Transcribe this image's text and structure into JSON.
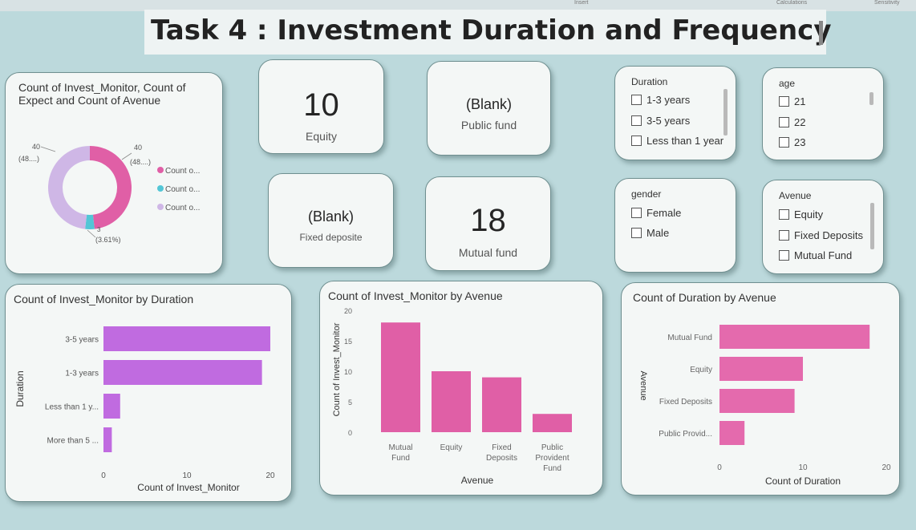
{
  "ribbon": {
    "insert": "Insert",
    "calculations": "Calculations",
    "sensitivity": "Sensitivity"
  },
  "title": "Task 4 :  Investment Duration and Frequency",
  "kpis": {
    "equity": {
      "value": "10",
      "label": "Equity"
    },
    "public_fund": {
      "value": "(Blank)",
      "label": "Public fund"
    },
    "fixed_deposite": {
      "value": "(Blank)",
      "label": "Fixed deposite"
    },
    "mutual_fund": {
      "value": "18",
      "label": "Mutual fund"
    }
  },
  "slicers": {
    "duration": {
      "title": "Duration",
      "items": [
        "1-3 years",
        "3-5 years",
        "Less than 1 year"
      ]
    },
    "age": {
      "title": "age",
      "items": [
        "21",
        "22",
        "23"
      ]
    },
    "gender": {
      "title": "gender",
      "items": [
        "Female",
        "Male"
      ]
    },
    "avenue": {
      "title": "Avenue",
      "items": [
        "Equity",
        "Fixed Deposits",
        "Mutual Fund"
      ]
    }
  },
  "colors": {
    "accent_pink": "#e05fa6",
    "purple": "#c06be0",
    "teal": "#53c6d6",
    "lilac": "#cfb7e6",
    "bg": "#bcd9dc"
  },
  "chart_data": [
    {
      "type": "pie",
      "title": "Count of Invest_Monitor, Count of Expect and Count of Avenue",
      "legend": [
        "Count o...",
        "Count o...",
        "Count o..."
      ],
      "legend_position": "right",
      "values": [
        40,
        3,
        40
      ],
      "data_labels": [
        {
          "value": "40",
          "pct": "(48....)"
        },
        {
          "value": "3",
          "pct": "(3.61%)"
        },
        {
          "value": "40",
          "pct": "(48....)"
        }
      ],
      "colors": [
        "#e05fa6",
        "#53c6d6",
        "#cfb7e6"
      ]
    },
    {
      "type": "bar",
      "orientation": "horizontal",
      "title": "Count of Invest_Monitor by Duration",
      "xlabel": "Count of Invest_Monitor",
      "ylabel": "Duration",
      "categories": [
        "3-5 years",
        "1-3 years",
        "Less than 1 y...",
        "More than 5 ..."
      ],
      "values": [
        20,
        19,
        2,
        1
      ],
      "xticks": [
        "0",
        "10",
        "20"
      ],
      "xlim": [
        0,
        20
      ],
      "color": "#c06be0"
    },
    {
      "type": "bar",
      "orientation": "vertical",
      "title": "Count of Invest_Monitor by Avenue",
      "xlabel": "Avenue",
      "ylabel": "Count of Invest_Monitor",
      "categories": [
        [
          "Mutual",
          "Fund"
        ],
        [
          "Equity"
        ],
        [
          "Fixed",
          "Deposits"
        ],
        [
          "Public",
          "Provident",
          "Fund"
        ]
      ],
      "values": [
        18,
        10,
        9,
        3
      ],
      "yticks": [
        "20",
        "15",
        "10",
        "5",
        "0"
      ],
      "ylim": [
        0,
        20
      ],
      "color": "#e05fa6"
    },
    {
      "type": "bar",
      "orientation": "horizontal",
      "title": "Count of Duration by Avenue",
      "xlabel": "Count of Duration",
      "ylabel": "Avenue",
      "categories": [
        "Mutual Fund",
        "Equity",
        "Fixed Deposits",
        "Public Provid..."
      ],
      "values": [
        18,
        10,
        9,
        3
      ],
      "xticks": [
        "0",
        "10",
        "20"
      ],
      "xlim": [
        0,
        20
      ],
      "color": "#e46aad"
    }
  ]
}
